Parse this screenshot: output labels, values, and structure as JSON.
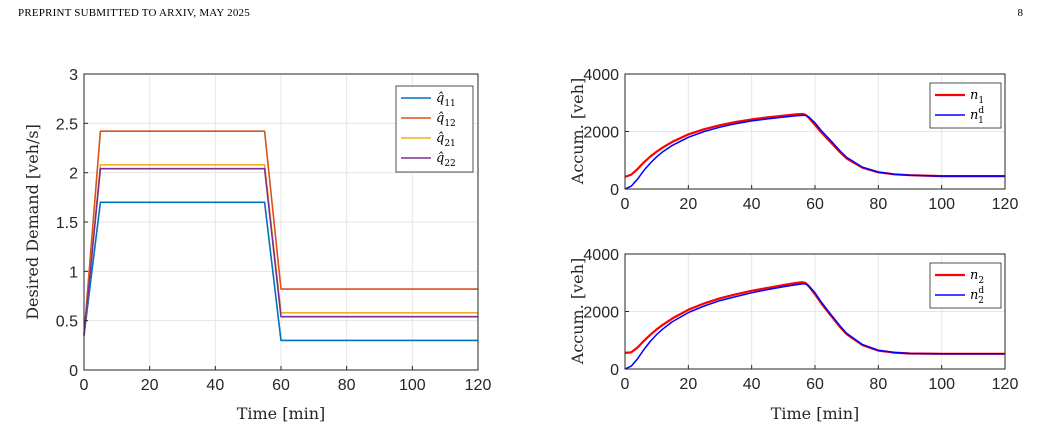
{
  "header": {
    "left": "PREPRINT SUBMITTED TO ARXIV, MAY 2025",
    "page_number": "8"
  },
  "colors": {
    "q11": "#0072BD",
    "q12": "#D95319",
    "q21": "#EDB120",
    "q22": "#7E2F8E",
    "n": "#FF0000",
    "nd": "#0000FF"
  },
  "chart_data": [
    {
      "type": "line",
      "xlabel": "Time [min]",
      "ylabel": "Desired Demand [veh/s]",
      "xlim": [
        0,
        120
      ],
      "ylim": [
        0,
        3
      ],
      "xticks": [
        0,
        20,
        40,
        60,
        80,
        100,
        120
      ],
      "yticks": [
        0,
        0.5,
        1,
        1.5,
        2,
        2.5,
        3
      ],
      "ytick_labels": [
        "0",
        "0.5",
        "1",
        "1.5",
        "2",
        "2.5",
        "3"
      ],
      "grid": true,
      "legend_position": "top-right",
      "series": [
        {
          "name": "q̂11",
          "base": "q̂",
          "sub": "11",
          "x": [
            0,
            5,
            55,
            60,
            120
          ],
          "values": [
            0.35,
            1.7,
            1.7,
            0.3,
            0.3
          ]
        },
        {
          "name": "q̂12",
          "base": "q̂",
          "sub": "12",
          "x": [
            0,
            5,
            55,
            60,
            120
          ],
          "values": [
            0.35,
            2.42,
            2.42,
            0.82,
            0.82
          ]
        },
        {
          "name": "q̂21",
          "base": "q̂",
          "sub": "21",
          "x": [
            0,
            5,
            55,
            60,
            120
          ],
          "values": [
            0.35,
            2.08,
            2.08,
            0.58,
            0.58
          ]
        },
        {
          "name": "q̂22",
          "base": "q̂",
          "sub": "22",
          "x": [
            0,
            5,
            55,
            60,
            120
          ],
          "values": [
            0.35,
            2.04,
            2.04,
            0.54,
            0.54
          ]
        }
      ]
    },
    {
      "type": "line",
      "xlabel": "",
      "ylabel": "Accum. [veh]",
      "xlim": [
        0,
        120
      ],
      "ylim": [
        0,
        4000
      ],
      "xticks": [
        0,
        20,
        40,
        60,
        80,
        100,
        120
      ],
      "yticks": [
        0,
        2000,
        4000
      ],
      "ytick_labels": [
        "0",
        "2000",
        "4000"
      ],
      "grid": true,
      "legend_position": "top-right",
      "series": [
        {
          "name": "n1",
          "base": "n",
          "sub": "1",
          "sup": "",
          "x": [
            0,
            2,
            4,
            6,
            8,
            10,
            12,
            15,
            20,
            25,
            30,
            35,
            40,
            45,
            50,
            54,
            56,
            57,
            58,
            60,
            62,
            65,
            68,
            70,
            75,
            80,
            85,
            90,
            100,
            110,
            120
          ],
          "values": [
            420,
            500,
            700,
            930,
            1130,
            1300,
            1450,
            1640,
            1900,
            2080,
            2220,
            2330,
            2420,
            2490,
            2550,
            2600,
            2610,
            2580,
            2480,
            2230,
            1970,
            1620,
            1270,
            1060,
            740,
            580,
            510,
            480,
            450,
            450,
            450
          ]
        },
        {
          "name": "n1d",
          "base": "n",
          "sub": "1",
          "sup": "d",
          "x": [
            0,
            2,
            4,
            6,
            8,
            10,
            12,
            15,
            20,
            25,
            30,
            35,
            40,
            45,
            50,
            54,
            56,
            57,
            58,
            60,
            62,
            65,
            68,
            70,
            75,
            80,
            85,
            90,
            100,
            110,
            120
          ],
          "values": [
            0,
            100,
            350,
            650,
            900,
            1120,
            1300,
            1520,
            1800,
            2000,
            2150,
            2270,
            2370,
            2440,
            2500,
            2550,
            2560,
            2560,
            2510,
            2300,
            2030,
            1680,
            1320,
            1100,
            760,
            590,
            515,
            480,
            450,
            450,
            450
          ]
        }
      ]
    },
    {
      "type": "line",
      "xlabel": "Time [min]",
      "ylabel": "Accum. [veh]",
      "xlim": [
        0,
        120
      ],
      "ylim": [
        0,
        4000
      ],
      "xticks": [
        0,
        20,
        40,
        60,
        80,
        100,
        120
      ],
      "yticks": [
        0,
        2000,
        4000
      ],
      "ytick_labels": [
        "0",
        "2000",
        "4000"
      ],
      "grid": true,
      "legend_position": "top-right",
      "series": [
        {
          "name": "n2",
          "base": "n",
          "sub": "2",
          "sup": "",
          "x": [
            0,
            2,
            4,
            6,
            8,
            10,
            12,
            15,
            20,
            25,
            30,
            35,
            40,
            45,
            50,
            54,
            56,
            57,
            58,
            60,
            62,
            65,
            68,
            70,
            75,
            80,
            85,
            90,
            100,
            110,
            120
          ],
          "values": [
            560,
            580,
            750,
            980,
            1190,
            1380,
            1540,
            1760,
            2060,
            2280,
            2460,
            2600,
            2720,
            2820,
            2920,
            2990,
            3020,
            2990,
            2880,
            2600,
            2280,
            1860,
            1450,
            1210,
            830,
            640,
            570,
            540,
            530,
            530,
            530
          ]
        },
        {
          "name": "n2d",
          "base": "n",
          "sub": "2",
          "sup": "d",
          "x": [
            0,
            2,
            4,
            6,
            8,
            10,
            12,
            15,
            20,
            25,
            30,
            35,
            40,
            45,
            50,
            54,
            56,
            57,
            58,
            60,
            62,
            65,
            68,
            70,
            75,
            80,
            85,
            90,
            100,
            110,
            120
          ],
          "values": [
            0,
            100,
            360,
            680,
            960,
            1200,
            1400,
            1650,
            1960,
            2190,
            2380,
            2520,
            2650,
            2760,
            2860,
            2930,
            2960,
            2960,
            2900,
            2650,
            2330,
            1900,
            1490,
            1240,
            850,
            650,
            575,
            540,
            530,
            530,
            530
          ]
        }
      ]
    }
  ]
}
